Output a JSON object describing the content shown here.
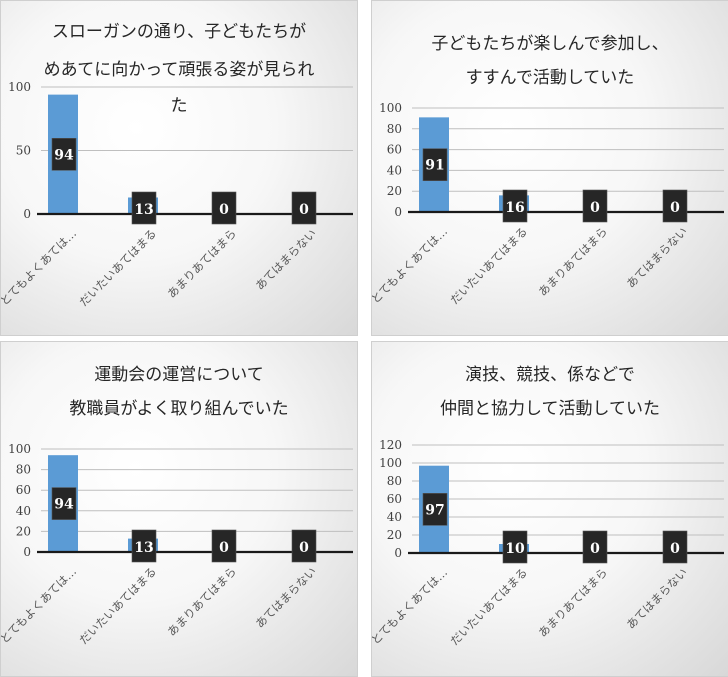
{
  "chart_data": [
    {
      "type": "bar",
      "title_lines": [
        "スローガンの通り、子どもたちが",
        "めあてに向かって頑張る姿が見られ",
        "た"
      ],
      "categories": [
        "とてもよくあては…",
        "だいたいあてはまる",
        "あまりあてはまら",
        "あてはまらない"
      ],
      "values": [
        94,
        13,
        0,
        0
      ],
      "yticks": [
        0,
        50,
        100
      ],
      "ylim": [
        0,
        100
      ],
      "bar_color": "#5b9bd5",
      "label_bg": "#262626"
    },
    {
      "type": "bar",
      "title_lines": [
        "子どもたちが楽しんで参加し、",
        "すすんで活動していた"
      ],
      "categories": [
        "とてもよくあては…",
        "だいたいあてはまる",
        "あまりあてはまら",
        "あてはまらない"
      ],
      "values": [
        91,
        16,
        0,
        0
      ],
      "yticks": [
        0,
        20,
        40,
        60,
        80,
        100
      ],
      "ylim": [
        0,
        100
      ],
      "bar_color": "#5b9bd5",
      "label_bg": "#262626"
    },
    {
      "type": "bar",
      "title_lines": [
        "運動会の運営について",
        "教職員がよく取り組んでいた"
      ],
      "categories": [
        "とてもよくあては…",
        "だいたいあてはまる",
        "あまりあてはまら",
        "あてはまらない"
      ],
      "values": [
        94,
        13,
        0,
        0
      ],
      "yticks": [
        0,
        20,
        40,
        60,
        80,
        100
      ],
      "ylim": [
        0,
        100
      ],
      "bar_color": "#5b9bd5",
      "label_bg": "#262626"
    },
    {
      "type": "bar",
      "title_lines": [
        "演技、競技、係などで",
        "仲間と協力して活動していた"
      ],
      "categories": [
        "とてもよくあては…",
        "だいたいあてはまる",
        "あまりあてはまら",
        "あてはまらない"
      ],
      "values": [
        97,
        10,
        0,
        0
      ],
      "yticks": [
        0,
        20,
        40,
        60,
        80,
        100,
        120
      ],
      "ylim": [
        0,
        120
      ],
      "bar_color": "#5b9bd5",
      "label_bg": "#262626"
    }
  ]
}
